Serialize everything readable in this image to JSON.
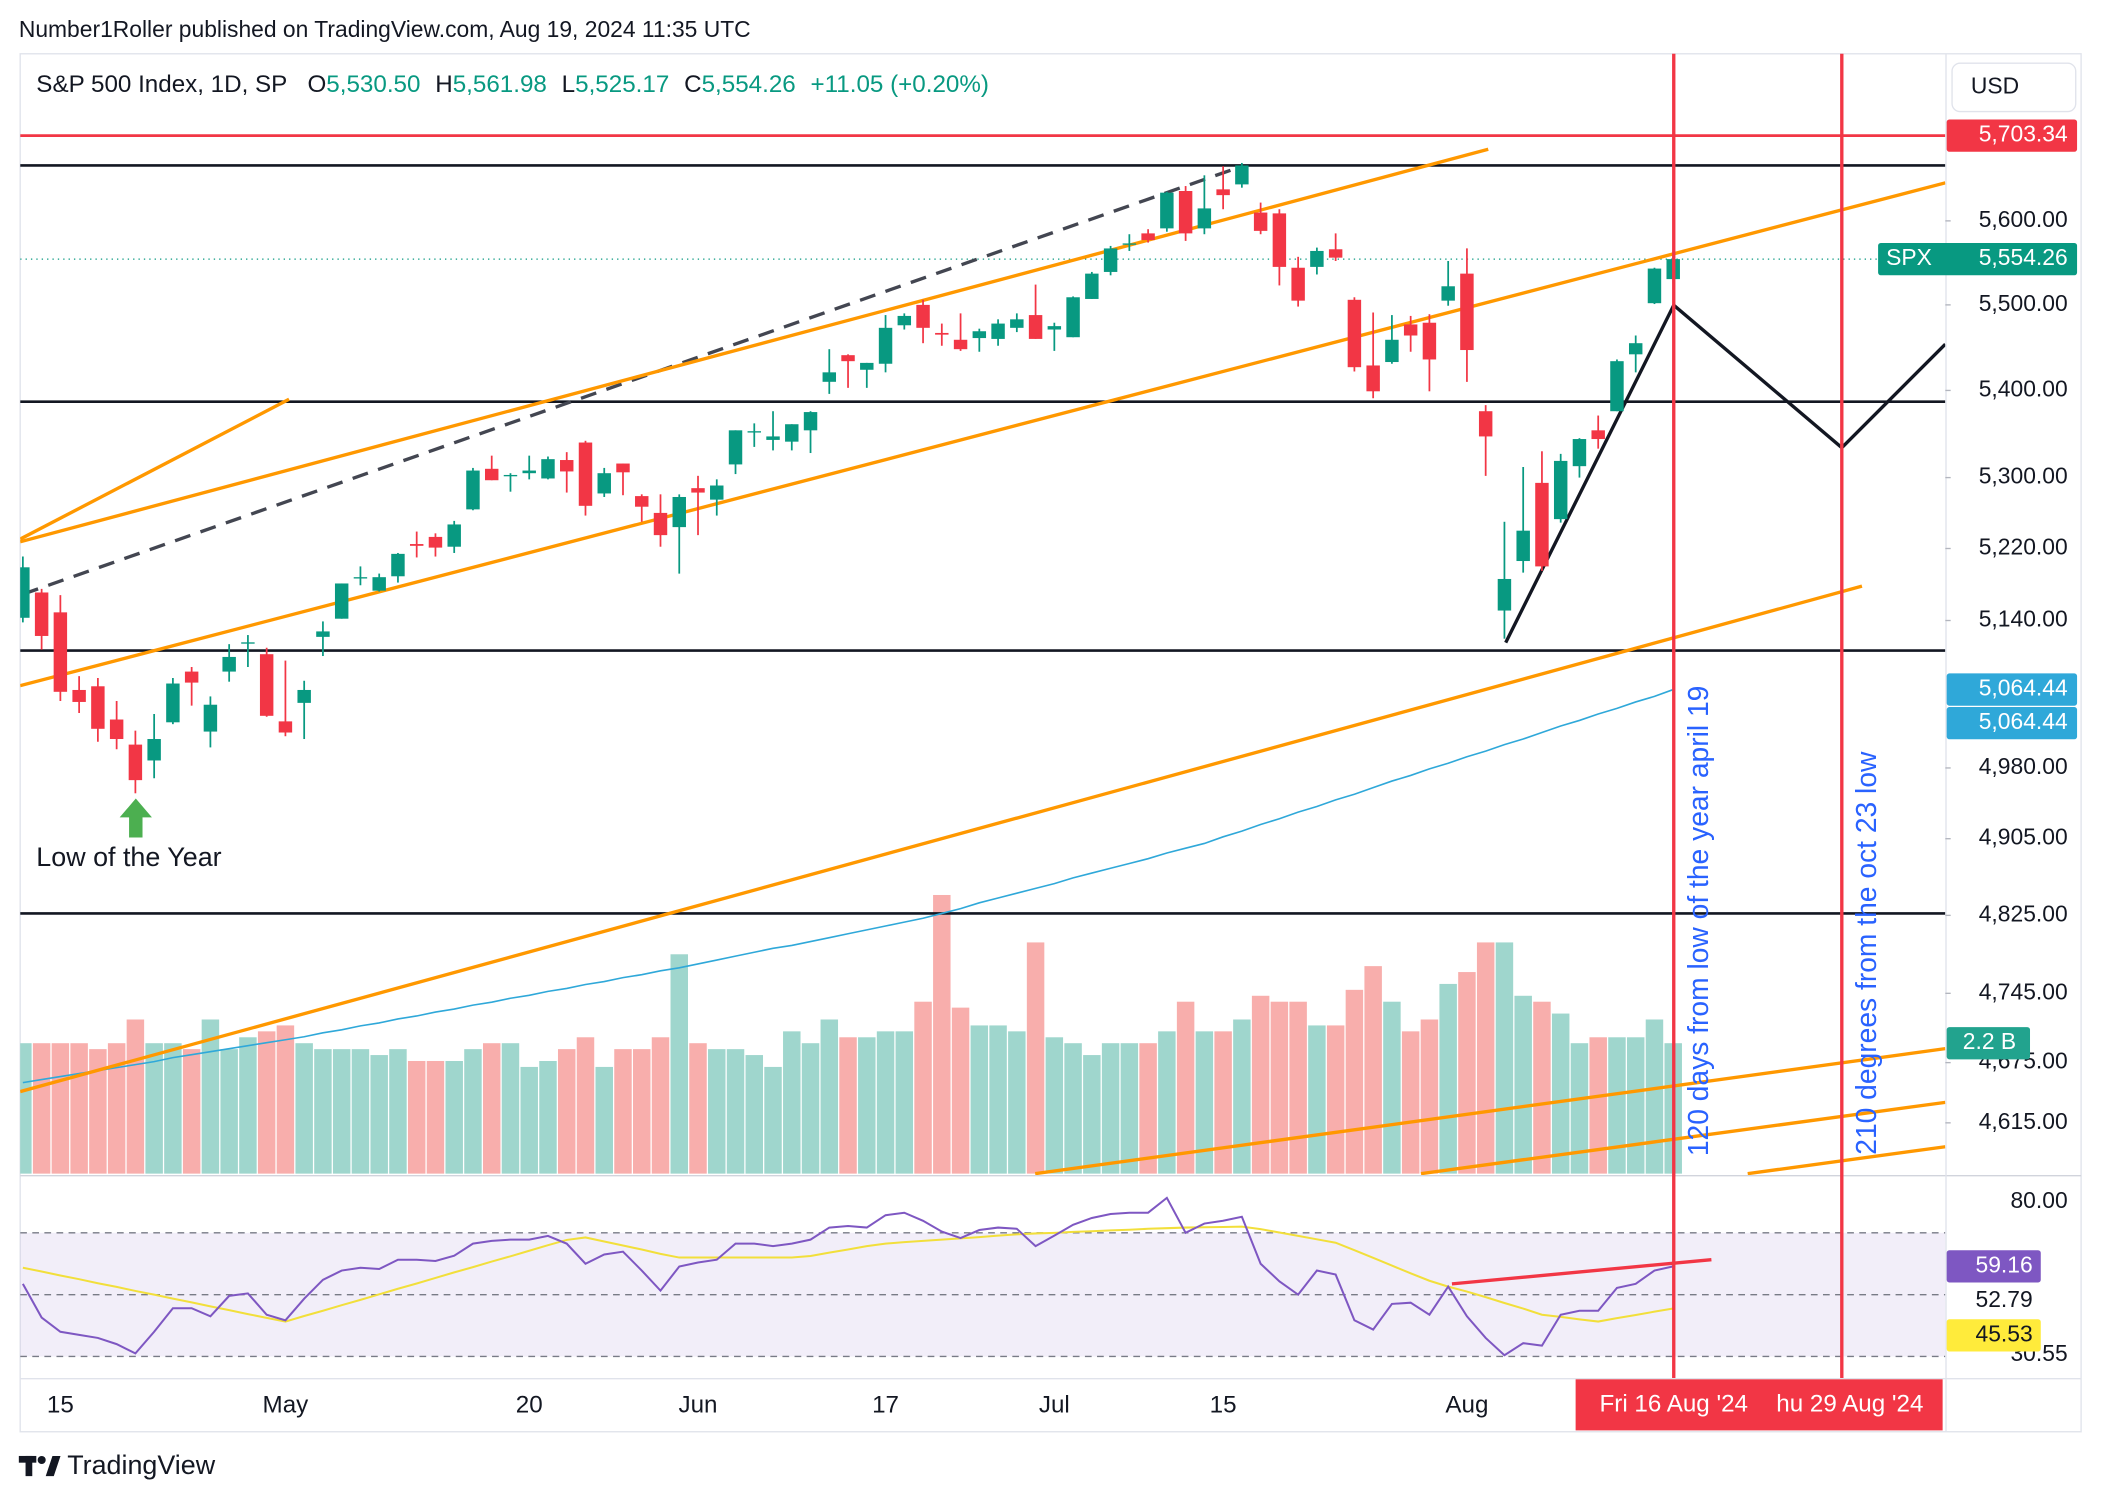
{
  "published": "Number1Roller published on TradingView.com, Aug 19, 2024 11:35 UTC",
  "brand": "TradingView",
  "chart_data": {
    "type": "candlestick",
    "title": "S&P 500 Index, 1D, SP",
    "ohlc_keys": [
      "O",
      "H",
      "L",
      "C"
    ],
    "ohlc_labels": [
      "5,530.50",
      "5,561.98",
      "5,525.17",
      "5,554.26"
    ],
    "change_label": "+11.05 (+0.20%)",
    "currency": "USD",
    "log_scale": true,
    "grid": false,
    "up_color": "#089981",
    "down_color": "#f23645",
    "categories": [
      null,
      null,
      "15",
      null,
      null,
      null,
      null,
      null,
      null,
      null,
      null,
      null,
      null,
      null,
      "May",
      null,
      null,
      null,
      null,
      null,
      null,
      null,
      null,
      null,
      null,
      null,
      null,
      "20",
      null,
      null,
      null,
      null,
      null,
      null,
      null,
      null,
      "Jun",
      null,
      null,
      null,
      null,
      null,
      null,
      null,
      null,
      null,
      "17",
      null,
      null,
      null,
      null,
      null,
      null,
      null,
      null,
      "Jul",
      null,
      null,
      null,
      null,
      null,
      null,
      null,
      null,
      "15",
      null,
      null,
      null,
      null,
      null,
      null,
      null,
      null,
      null,
      null,
      null,
      null,
      "Aug",
      null,
      null,
      null,
      null,
      null,
      null,
      null,
      null,
      null,
      null,
      null
    ],
    "open": [
      5143,
      5171,
      5149,
      5064,
      5068,
      5032,
      5005,
      4988,
      5029,
      5084,
      5019,
      5084,
      5115,
      5103,
      5030,
      5050,
      5122,
      5142,
      5188,
      5173,
      5189,
      5225,
      5233,
      5222,
      5264,
      5310,
      5303,
      5305,
      5299,
      5320,
      5340,
      5282,
      5316,
      5279,
      5260,
      5244,
      5288,
      5275,
      5315,
      5353,
      5343,
      5341,
      5354,
      5410,
      5441,
      5424,
      5431,
      5476,
      5500,
      5467,
      5459,
      5461,
      5460,
      5473,
      5488,
      5471,
      5462,
      5507,
      5539,
      5572,
      5585,
      5591,
      5636,
      5591,
      5638,
      5644,
      5610,
      5609,
      5544,
      5545,
      5566,
      5506,
      5429,
      5433,
      5477,
      5479,
      5505,
      5537,
      5376,
      5151,
      5206,
      5294,
      5253,
      5313,
      5354,
      5376,
      5442,
      5502,
      5530.5
    ],
    "high": [
      5211,
      5175,
      5168,
      5079,
      5077,
      5052,
      5020,
      5038,
      5077,
      5089,
      5057,
      5114,
      5124,
      5110,
      5096,
      5074,
      5139,
      5181,
      5200,
      5192,
      5215,
      5239,
      5237,
      5251,
      5311,
      5325,
      5305,
      5325,
      5324,
      5329,
      5342,
      5311,
      5316,
      5281,
      5281,
      5281,
      5302,
      5298,
      5354,
      5362,
      5376,
      5361,
      5376,
      5448,
      5442,
      5432,
      5488,
      5490,
      5506,
      5478,
      5490,
      5472,
      5483,
      5490,
      5524,
      5479,
      5510,
      5539,
      5570,
      5584,
      5590,
      5635,
      5642,
      5655,
      5666,
      5670,
      5622,
      5614,
      5557,
      5568,
      5585,
      5509,
      5491,
      5488,
      5487,
      5489,
      5552,
      5567,
      5383,
      5250,
      5312,
      5330,
      5327,
      5345,
      5371,
      5436,
      5464,
      5544,
      5561.98
    ],
    "low": [
      5138,
      5108,
      5052,
      5039,
      5008,
      5000,
      4953,
      4969,
      5027,
      5047,
      5002,
      5073,
      5089,
      5035,
      5014,
      5011,
      5101,
      5142,
      5179,
      5172,
      5182,
      5210,
      5211,
      5215,
      5263,
      5297,
      5284,
      5298,
      5298,
      5283,
      5257,
      5278,
      5280,
      5250,
      5222,
      5192,
      5235,
      5257,
      5304,
      5335,
      5331,
      5331,
      5328,
      5396,
      5403,
      5403,
      5421,
      5471,
      5455,
      5452,
      5446,
      5445,
      5452,
      5468,
      5460,
      5446,
      5462,
      5507,
      5535,
      5564,
      5574,
      5587,
      5576,
      5584,
      5614,
      5640,
      5584,
      5523,
      5498,
      5536,
      5552,
      5422,
      5391,
      5431,
      5445,
      5399,
      5499,
      5410,
      5302,
      5120,
      5193,
      5195,
      5249,
      5300,
      5333,
      5376,
      5421,
      5501,
      5525.17
    ],
    "close": [
      5199,
      5123,
      5062,
      5051,
      5022,
      5011,
      4967,
      5011,
      5071,
      5072,
      5048,
      5100,
      5116,
      5036,
      5018,
      5064,
      5128,
      5181,
      5188,
      5188,
      5214,
      5223,
      5221,
      5247,
      5308,
      5297,
      5303,
      5308,
      5321,
      5307,
      5268,
      5305,
      5306,
      5267,
      5235,
      5278,
      5283,
      5291,
      5354,
      5353,
      5347,
      5361,
      5375,
      5421,
      5434,
      5432,
      5473,
      5487,
      5473,
      5465,
      5448,
      5469,
      5478,
      5483,
      5460,
      5475,
      5509,
      5537,
      5567,
      5573,
      5577,
      5634,
      5585,
      5615,
      5631,
      5667,
      5588,
      5545,
      5505,
      5564,
      5556,
      5427,
      5399,
      5459,
      5464,
      5436,
      5522,
      5447,
      5347,
      5186,
      5240,
      5200,
      5319,
      5344,
      5344,
      5434,
      5455,
      5543,
      5554.26
    ],
    "volume": [
      2.2,
      2.2,
      2.2,
      2.2,
      2.1,
      2.2,
      2.6,
      2.2,
      2.2,
      2.1,
      2.6,
      2.1,
      2.3,
      2.4,
      2.5,
      2.2,
      2.1,
      2.1,
      2.1,
      2.0,
      2.1,
      1.9,
      1.9,
      1.9,
      2.1,
      2.2,
      2.2,
      1.8,
      1.9,
      2.1,
      2.3,
      1.8,
      2.1,
      2.1,
      2.3,
      3.7,
      2.2,
      2.1,
      2.1,
      2.0,
      1.8,
      2.4,
      2.2,
      2.6,
      2.3,
      2.3,
      2.4,
      2.4,
      2.9,
      4.7,
      2.8,
      2.5,
      2.5,
      2.4,
      3.9,
      2.3,
      2.2,
      2.0,
      2.2,
      2.2,
      2.2,
      2.4,
      2.9,
      2.4,
      2.4,
      2.6,
      3.0,
      2.9,
      2.9,
      2.5,
      2.5,
      3.1,
      3.5,
      2.9,
      2.4,
      2.6,
      3.2,
      3.4,
      3.9,
      3.9,
      3.0,
      2.9,
      2.7,
      2.2,
      2.3,
      2.3,
      2.3,
      2.6,
      2.2
    ],
    "volume_ylim": [
      0,
      5
    ],
    "volume_up_color": "#9fd6cd",
    "volume_down_color": "#f8aeac",
    "ma": {
      "color": "#2fa8d9",
      "values": [
        4655,
        4658,
        4661,
        4664,
        4667,
        4670,
        4673,
        4676,
        4680,
        4683,
        4686,
        4689,
        4692,
        4695,
        4698,
        4701,
        4705,
        4708,
        4712,
        4715,
        4719,
        4722,
        4726,
        4729,
        4733,
        4736,
        4740,
        4743,
        4747,
        4750,
        4754,
        4757,
        4761,
        4764,
        4768,
        4771,
        4775,
        4779,
        4783,
        4787,
        4791,
        4794,
        4798,
        4802,
        4806,
        4810,
        4814,
        4818,
        4822,
        4827,
        4832,
        4838,
        4843,
        4848,
        4853,
        4858,
        4864,
        4869,
        4874,
        4879,
        4884,
        4890,
        4895,
        4900,
        4907,
        4913,
        4920,
        4926,
        4933,
        4939,
        4946,
        4952,
        4959,
        4966,
        4972,
        4979,
        4985,
        4992,
        4998,
        5005,
        5011,
        5018,
        5025,
        5031,
        5038,
        5044,
        5051,
        5057,
        5064.44
      ]
    },
    "ylim": [
      4565,
      5801
    ],
    "yticks": [
      {
        "value": 5600,
        "label": "5,600.00"
      },
      {
        "value": 5500,
        "label": "5,500.00"
      },
      {
        "value": 5400,
        "label": "5,400.00"
      },
      {
        "value": 5300,
        "label": "5,300.00"
      },
      {
        "value": 5220,
        "label": "5,220.00"
      },
      {
        "value": 5140,
        "label": "5,140.00"
      },
      {
        "value": 4980,
        "label": "4,980.00"
      },
      {
        "value": 4905,
        "label": "4,905.00"
      },
      {
        "value": 4825,
        "label": "4,825.00"
      },
      {
        "value": 4745,
        "label": "4,745.00"
      },
      {
        "value": 4675,
        "label": "4,675.00"
      },
      {
        "value": 4615,
        "label": "4,615.00"
      }
    ],
    "levels": [
      5667,
      5387,
      5107,
      4827
    ],
    "price_tags": [
      {
        "value": 5703.34,
        "label": "5,703.34",
        "color": "#f23645"
      },
      {
        "name": "SPX",
        "value": 5554.26,
        "label": "5,554.26",
        "color": "#089981"
      },
      {
        "value": 5064.44,
        "label": "5,064.44",
        "color": "#2fa8d9"
      },
      {
        "value": 5064.44,
        "label": "5,064.44",
        "color": "#2fa8d9"
      }
    ],
    "volume_tag": {
      "value": 2.2,
      "label": "2.2 B",
      "color": "#22a38e"
    },
    "rsi": {
      "color": "#7e57c2",
      "values": [
        53.5,
        42.6,
        38,
        37,
        36,
        34,
        31,
        38,
        45.6,
        45.6,
        43,
        49.6,
        50.4,
        43.5,
        41.7,
        48.7,
        54.8,
        57.8,
        58.7,
        58.3,
        61.3,
        61.3,
        60.9,
        62.6,
        66.5,
        67.4,
        67.8,
        67.8,
        69,
        66.5,
        60,
        63,
        63.9,
        57.8,
        51.3,
        59.1,
        60.4,
        61.3,
        66.5,
        66.5,
        65.7,
        66.5,
        67.8,
        71.7,
        72.2,
        71.7,
        75.7,
        76.5,
        73.9,
        70.4,
        68.3,
        70.9,
        71.7,
        71.3,
        65.7,
        69.1,
        72.6,
        74.8,
        76.1,
        76.5,
        76.5,
        81.3,
        70,
        73,
        73.9,
        75.2,
        60,
        54.3,
        50,
        57.8,
        56.5,
        41.7,
        38.7,
        47,
        47.4,
        43.5,
        52.6,
        43,
        36,
        30.4,
        34.3,
        33.5,
        43.5,
        44.8,
        44.8,
        52.2,
        53.5,
        57.8,
        59.16
      ]
    },
    "rsi_ma": {
      "color": "#f2df3b",
      "values": [
        58.7,
        57.5,
        56.2,
        55,
        53.7,
        52.5,
        51.2,
        50,
        48.7,
        47.5,
        46.2,
        45,
        43.7,
        42.5,
        41.3,
        43.1,
        44.8,
        46.6,
        48.3,
        50.1,
        51.9,
        53.6,
        55.4,
        57.2,
        58.9,
        60.7,
        62.4,
        64.2,
        66,
        67.7,
        68.5,
        67.2,
        65.9,
        64.6,
        63.2,
        62,
        62,
        62,
        62,
        62,
        62,
        62,
        62.5,
        63.6,
        64.6,
        65.7,
        66.5,
        67,
        67.4,
        67.8,
        68.2,
        68.6,
        69.1,
        69.5,
        69.8,
        70,
        70.3,
        70.5,
        70.8,
        71,
        71.3,
        71.5,
        71.7,
        71.8,
        71.9,
        72,
        71.2,
        70.1,
        69,
        67.9,
        66.8,
        64.4,
        61.9,
        59.4,
        56.9,
        54.5,
        52.6,
        51,
        49.2,
        47.3,
        45.5,
        43.5,
        42.8,
        42,
        41.3,
        42.4,
        43.4,
        44.5,
        45.53
      ]
    },
    "rsi_ylim": [
      24.35,
      86.1
    ],
    "rsi_bands": [
      70,
      50,
      30
    ],
    "rsi_ticks": [
      {
        "value": 80,
        "label": "80.00"
      },
      {
        "value": 30.55,
        "label": "30.55"
      }
    ],
    "rsi_tags": [
      {
        "value": 59.16,
        "label": "59.16",
        "color": "#7e57c2"
      },
      {
        "value": 52.79,
        "label": "52.79"
      },
      {
        "value": 45.53,
        "label": "45.53",
        "color": "#ffeb3b"
      }
    ],
    "annotations": {
      "low": "Low of the Year",
      "days": "120 days from low of the year april 19",
      "degrees": "210 degrees from the oct 23 low"
    },
    "date_markers": [
      "Fri 16 Aug '24",
      "hu 29 Aug '24"
    ]
  }
}
